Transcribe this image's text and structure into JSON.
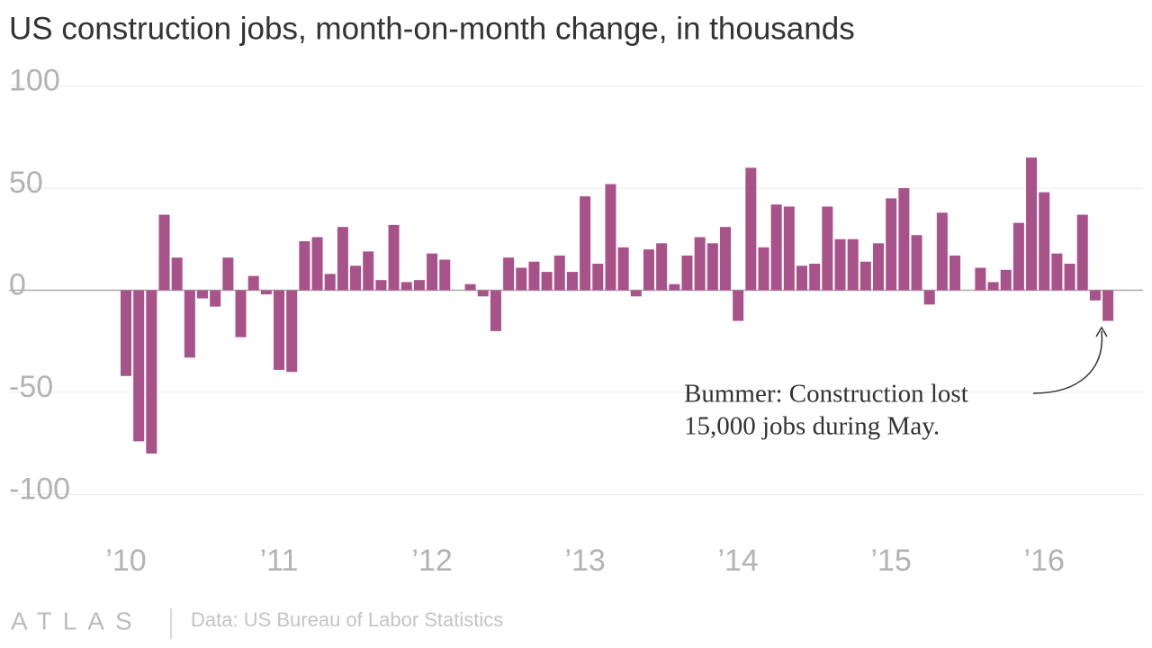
{
  "chart_data": {
    "type": "bar",
    "title": "US construction jobs, month-on-month change, in thousands",
    "categories": [
      "’10",
      null,
      null,
      null,
      null,
      null,
      null,
      null,
      null,
      null,
      null,
      null,
      "’11",
      null,
      null,
      null,
      null,
      null,
      null,
      null,
      null,
      null,
      null,
      null,
      "’12",
      null,
      null,
      null,
      null,
      null,
      null,
      null,
      null,
      null,
      null,
      null,
      "’13",
      null,
      null,
      null,
      null,
      null,
      null,
      null,
      null,
      null,
      null,
      null,
      "’14",
      null,
      null,
      null,
      null,
      null,
      null,
      null,
      null,
      null,
      null,
      null,
      "’15",
      null,
      null,
      null,
      null,
      null,
      null,
      null,
      null,
      null,
      null,
      null,
      "’16",
      null,
      null,
      null,
      null,
      null
    ],
    "values": [
      -42,
      -74,
      -80,
      37,
      16,
      -33,
      -4,
      -8,
      16,
      -23,
      7,
      -2,
      -39,
      -40,
      24,
      26,
      8,
      31,
      12,
      19,
      5,
      32,
      4,
      5,
      18,
      15,
      0,
      3,
      -3,
      -20,
      16,
      11,
      14,
      9,
      17,
      9,
      46,
      13,
      52,
      21,
      -3,
      20,
      23,
      3,
      17,
      26,
      23,
      31,
      -15,
      60,
      21,
      42,
      41,
      12,
      13,
      41,
      25,
      25,
      14,
      23,
      45,
      50,
      27,
      -7,
      38,
      17,
      0,
      11,
      4,
      10,
      33,
      65,
      48,
      18,
      13,
      37,
      -5,
      -15
    ],
    "color": "#a8528a",
    "ylim": [
      -110,
      110
    ],
    "yticks": [
      -100,
      -50,
      0,
      50,
      100
    ],
    "grid": true,
    "annotation": [
      "Bummer: Construction lost",
      "15,000 jobs during May."
    ],
    "source": "Data: US Bureau of Labor Statistics",
    "brand": "ATLAS"
  }
}
